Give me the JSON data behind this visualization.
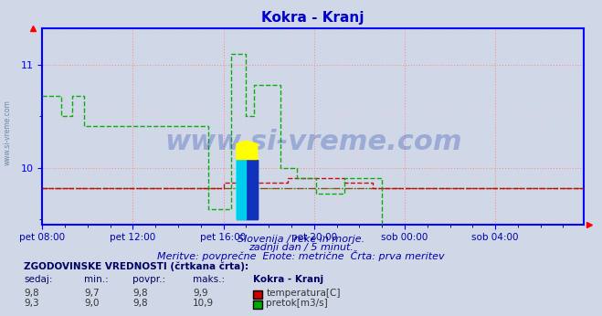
{
  "title": "Kokra - Kranj",
  "title_color": "#0000cc",
  "bg_color": "#d0d8e8",
  "plot_bg_color": "#d0d8e8",
  "axis_color": "#0000ff",
  "xlabel_color": "#0000aa",
  "subtitle_lines": [
    "Slovenija / reke in morje.",
    "zadnji dan / 5 minut.",
    "Meritve: povprečne  Enote: metrične  Črta: prva meritev"
  ],
  "table_header": "ZGODOVINSKE VREDNOSTI (črtkana črta):",
  "table_cols": [
    "sedaj:",
    "min.:",
    "povpr.:",
    "maks.:",
    "Kokra - Kranj"
  ],
  "table_data": [
    [
      9.8,
      9.7,
      9.8,
      9.9,
      "temperatura[C]",
      "#cc0000"
    ],
    [
      9.3,
      9.0,
      9.8,
      10.9,
      "pretok[m3/s]",
      "#00aa00"
    ]
  ],
  "xticklabels": [
    "pet 08:00",
    "pet 12:00",
    "pet 16:00",
    "pet 20:00",
    "sob 00:00",
    "sob 04:00"
  ],
  "xtick_positions": [
    0,
    48,
    96,
    144,
    192,
    240
  ],
  "total_points": 288,
  "ylim": [
    9.45,
    11.35
  ],
  "yticks": [
    10.0,
    11.0
  ],
  "temp_avg_line": 9.8,
  "flow_avg_line": 9.8,
  "watermark": "www.si-vreme.com",
  "watermark_color": "#2244aa",
  "watermark_alpha": 0.3,
  "left_label": "www.si-vreme.com",
  "temp_color": "#cc0000",
  "flow_color": "#00aa00"
}
